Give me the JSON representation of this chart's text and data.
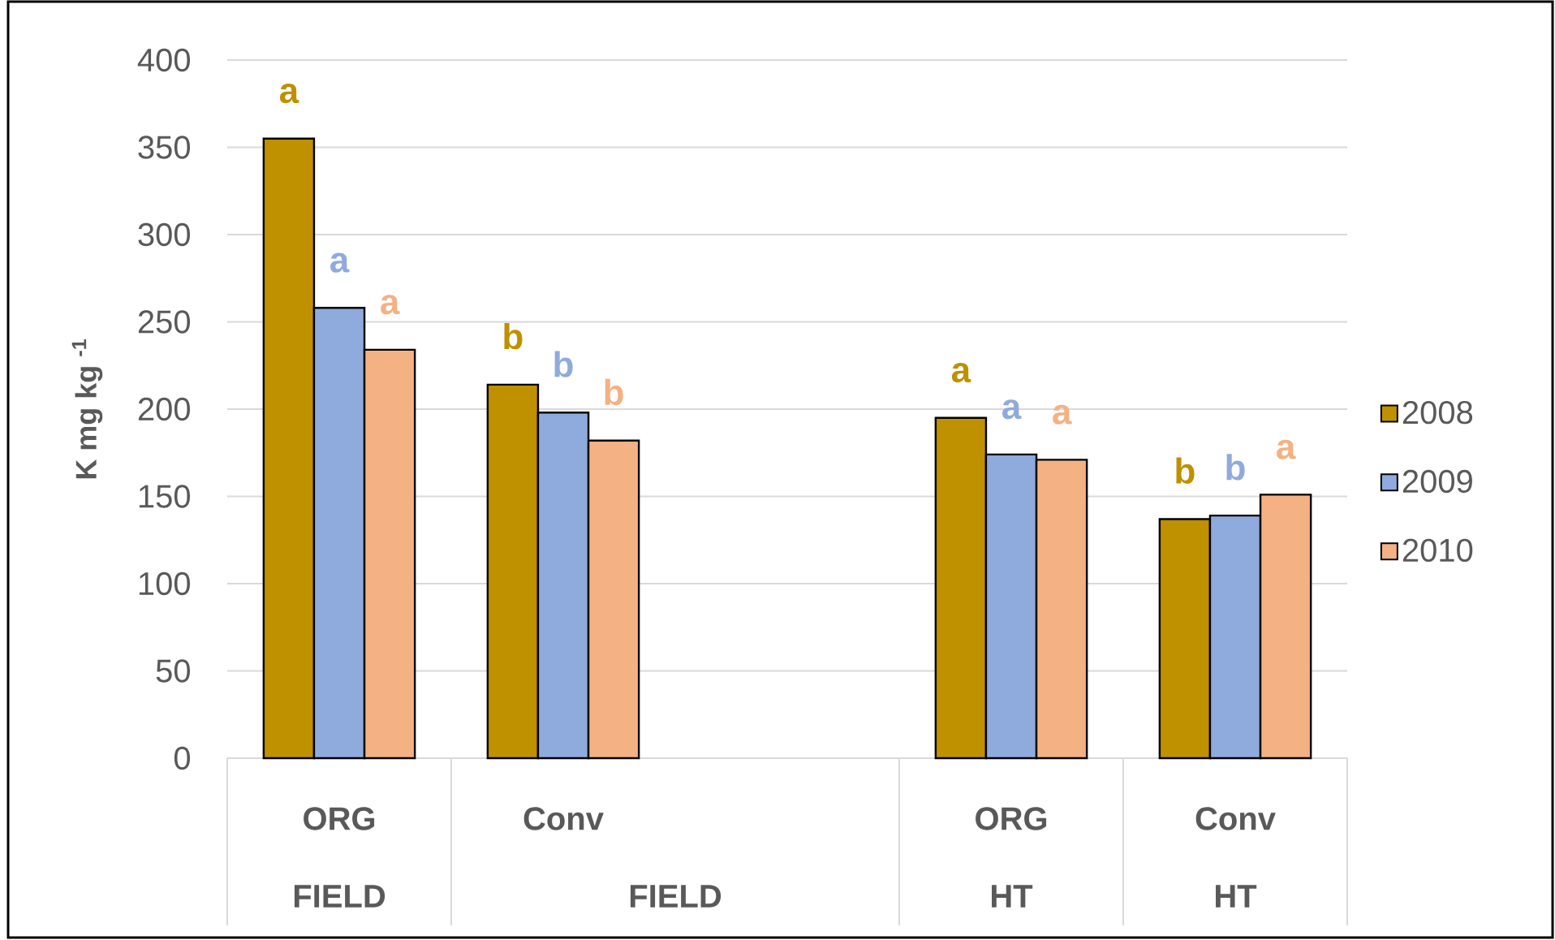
{
  "chart_data": {
    "type": "bar",
    "ylabel": "K mg kg $^{-1}$",
    "categories": [
      "ORG",
      "Conv",
      null,
      "ORG",
      "Conv"
    ],
    "series": [
      {
        "name": "2008",
        "color": "#bf9000",
        "values": [
          355,
          214,
          null,
          195,
          137
        ],
        "value_labels": [
          "a",
          "b",
          null,
          "a",
          "b"
        ]
      },
      {
        "name": "2009",
        "color": "#8faadc",
        "values": [
          258,
          198,
          null,
          174,
          139
        ],
        "value_labels": [
          "a",
          "b",
          null,
          "a",
          "b"
        ]
      },
      {
        "name": "2010",
        "color": "#f4b183",
        "values": [
          234,
          182,
          null,
          171,
          151
        ],
        "value_labels": [
          "a",
          "b",
          null,
          "a",
          "a"
        ]
      }
    ],
    "ylim": [
      0,
      400
    ],
    "yticks": [
      0,
      50,
      100,
      150,
      200,
      250,
      300,
      350,
      400
    ],
    "grid": "y",
    "legend": "right",
    "annotations": [
      "FIELD",
      "FIELD",
      "HT",
      "HT"
    ]
  }
}
